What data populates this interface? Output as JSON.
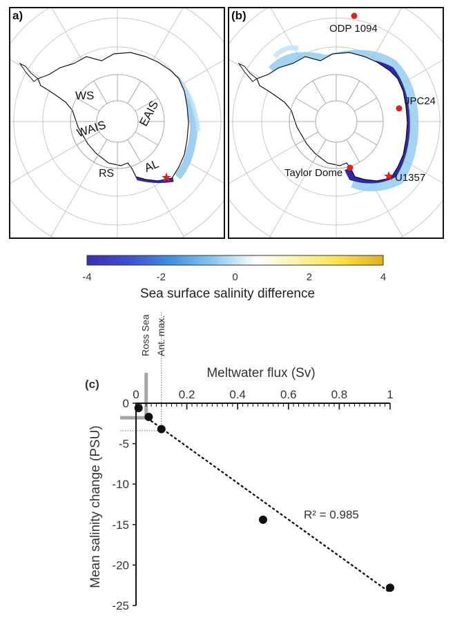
{
  "panels": {
    "a": {
      "letter": "a)",
      "region_labels": {
        "ws": "WS",
        "wais": "WAIS",
        "eais": "EAIS",
        "rs": "RS",
        "al": "AL"
      }
    },
    "b": {
      "letter": "(b)",
      "site_labels": {
        "odp": "ODP 1094",
        "jpc": "JPC24",
        "taylor": "Taylor Dome",
        "u1357": "U1357"
      }
    }
  },
  "colorbar": {
    "label": "Sea surface salinity difference",
    "ticks": [
      "-4",
      "-2",
      "0",
      "2",
      "4"
    ],
    "stops": [
      "#3a2fb0",
      "#3f4fd0",
      "#3f92e0",
      "#8cc8ef",
      "#ffffff",
      "#fbf3a6",
      "#fae048",
      "#e0b020"
    ]
  },
  "chart_data": {
    "type": "scatter",
    "panel_letter": "(c)",
    "xlabel": "Meltwater flux (Sv)",
    "ylabel": "Mean salinity change (PSU)",
    "x_ticks": [
      "0",
      "0.2",
      "0.4",
      "0.6",
      "0.8",
      "1"
    ],
    "y_ticks": [
      "0",
      "-5",
      "-10",
      "-15",
      "-20",
      "-25"
    ],
    "xlim": [
      0,
      1
    ],
    "ylim": [
      -25,
      0
    ],
    "points": [
      {
        "x": 0.01,
        "y": -0.6
      },
      {
        "x": 0.05,
        "y": -1.7
      },
      {
        "x": 0.1,
        "y": -3.2
      },
      {
        "x": 0.5,
        "y": -14.4
      },
      {
        "x": 1.0,
        "y": -22.8
      }
    ],
    "fit": {
      "x0": 0.06,
      "y0": -2.2,
      "x1": 1.0,
      "y1": -23.4
    },
    "annotation": "R² = 0.985",
    "ross_sea": {
      "label": "Ross Sea",
      "x": 0.04,
      "y": -1.8
    },
    "ant_max": {
      "label": "Ant. max.",
      "x": 0.1,
      "y": -3.4
    }
  }
}
